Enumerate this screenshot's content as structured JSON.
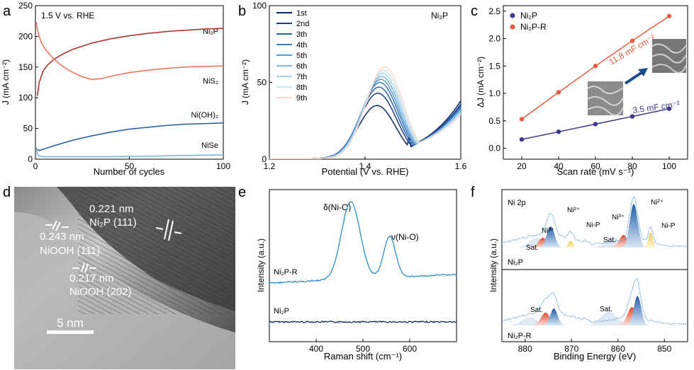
{
  "panels": {
    "a": {
      "letter": "a"
    },
    "b": {
      "letter": "b"
    },
    "c": {
      "letter": "c"
    },
    "d": {
      "letter": "d"
    },
    "e": {
      "letter": "e"
    },
    "f": {
      "letter": "f"
    }
  },
  "chart_data": [
    {
      "id": "a",
      "type": "line",
      "annotation": "1.5 V vs. RHE",
      "xlabel": "Number of cycles",
      "ylabel": "J (mA cm⁻²)",
      "xlim": [
        0,
        100
      ],
      "ylim": [
        0,
        250
      ],
      "xticks": [
        0,
        50,
        100
      ],
      "yticks": [
        0,
        50,
        100,
        150,
        200,
        250
      ],
      "series": [
        {
          "name": "Ni₂P",
          "color": "#b3261e",
          "x": [
            1,
            2,
            4,
            6,
            10,
            15,
            20,
            30,
            40,
            50,
            60,
            70,
            80,
            90,
            100
          ],
          "y": [
            103,
            125,
            143,
            152,
            163,
            172,
            179,
            189,
            196,
            201,
            205,
            208,
            210,
            212,
            213
          ]
        },
        {
          "name": "NiS₂",
          "color": "#f26c4f",
          "x": [
            0.5,
            1,
            2,
            3,
            5,
            8,
            12,
            16,
            20,
            25,
            30,
            35,
            40,
            50,
            60,
            70,
            80,
            90,
            100
          ],
          "y": [
            223,
            212,
            200,
            191,
            180,
            169,
            157,
            148,
            141,
            134,
            130,
            131,
            135,
            141,
            145,
            148,
            150,
            151,
            152
          ]
        },
        {
          "name": "Ni(OH)₂",
          "color": "#1f5aa6",
          "x": [
            1,
            2,
            5,
            10,
            20,
            30,
            40,
            50,
            60,
            70,
            80,
            90,
            100
          ],
          "y": [
            16,
            14,
            17,
            22,
            31,
            38,
            44,
            49,
            52,
            55,
            57,
            58,
            59
          ]
        },
        {
          "name": "NiSe",
          "color": "#6bb3e3",
          "x": [
            0.5,
            1,
            2,
            4,
            10,
            20,
            40,
            60,
            80,
            100
          ],
          "y": [
            19,
            9,
            5,
            4,
            4,
            4,
            4,
            5,
            6,
            7
          ]
        }
      ]
    },
    {
      "id": "b",
      "type": "line",
      "annotation": "Ni₂P",
      "xlabel": "Potential (V vs. RHE)",
      "ylabel": "J (mA cm⁻²)",
      "xlim": [
        1.2,
        1.6
      ],
      "ylim": [
        0,
        100
      ],
      "xticks": [
        1.2,
        1.4,
        1.6
      ],
      "yticks": [
        0,
        50,
        100
      ],
      "series": [
        {
          "name": "1st",
          "color": "#0b2a63",
          "peak": 35,
          "end": 38
        },
        {
          "name": "2nd",
          "color": "#1a3f86",
          "peak": 43,
          "end": 36
        },
        {
          "name": "3th",
          "color": "#2d62a8",
          "peak": 47,
          "end": 35
        },
        {
          "name": "4th",
          "color": "#3d79bb",
          "peak": 50,
          "end": 34
        },
        {
          "name": "5th",
          "color": "#5b9bd0",
          "peak": 52,
          "end": 33
        },
        {
          "name": "6th",
          "color": "#7fb8e2",
          "peak": 54,
          "end": 32
        },
        {
          "name": "7th",
          "color": "#a9d3ef",
          "peak": 56,
          "end": 31
        },
        {
          "name": "8th",
          "color": "#cbe4f2",
          "peak": 58,
          "end": 30
        },
        {
          "name": "9th",
          "color": "#f7d8c9",
          "peak": 60,
          "end": 29
        }
      ]
    },
    {
      "id": "c",
      "type": "scatter",
      "xlabel": "Scan rate (mV s⁻¹)",
      "ylabel": "ΔJ (mA cm⁻²)",
      "xlim": [
        10,
        110
      ],
      "ylim": [
        -0.2,
        2.6
      ],
      "xticks": [
        20,
        40,
        60,
        80,
        100
      ],
      "yticks": [
        0.0,
        0.5,
        1.0,
        1.5,
        2.0,
        2.5
      ],
      "series": [
        {
          "name": "Ni₂P",
          "color": "#3d3a8c",
          "x": [
            20,
            40,
            60,
            80,
            100
          ],
          "y": [
            0.16,
            0.3,
            0.44,
            0.58,
            0.72
          ],
          "fit_label": "3.5 mF cm⁻²"
        },
        {
          "name": "Ni₂P-R",
          "color": "#ef5a3c",
          "x": [
            20,
            40,
            60,
            80,
            100
          ],
          "y": [
            0.53,
            1.02,
            1.5,
            1.96,
            2.41
          ],
          "fit_label": "11.8 mF cm⁻²"
        }
      ]
    },
    {
      "id": "d",
      "type": "image",
      "labels": [
        {
          "text": "0.221 nm",
          "color": "#ffffff"
        },
        {
          "text": "Ni₂P (111)",
          "color": "#ffffff"
        },
        {
          "text": "0.243 nm",
          "color": "#ffffff"
        },
        {
          "text": "NiOOH (111)",
          "color": "#ffffff"
        },
        {
          "text": "0.217 nm",
          "color": "#ffffff"
        },
        {
          "text": "NiOOH (202)",
          "color": "#ffffff"
        }
      ],
      "scalebar": "5 nm"
    },
    {
      "id": "e",
      "type": "line",
      "xlabel": "Raman shift (cm⁻¹)",
      "ylabel": "Intensity (a.u.)",
      "xlim": [
        300,
        700
      ],
      "xticks": [
        400,
        500,
        600
      ],
      "peak_labels": [
        "δ(Ni-O)",
        "ν(Ni-O)"
      ],
      "series": [
        {
          "name": "Ni₂P-R",
          "color": "#2b8fd0",
          "peaks": [
            474,
            557
          ]
        },
        {
          "name": "Ni₂P",
          "color": "#0b2a63",
          "peaks": []
        }
      ]
    },
    {
      "id": "f",
      "type": "line",
      "title": "Ni 2p",
      "xlabel": "Binding Energy (eV)",
      "ylabel": "Intensity (a.u.)",
      "xlim": [
        885,
        845
      ],
      "xticks": [
        880,
        870,
        860,
        850
      ],
      "subplots": [
        {
          "name": "Ni₂P",
          "labels": [
            "Ni³⁺",
            "Ni²⁺",
            "Sat.",
            "Ni-P",
            "Ni³⁺",
            "Sat.",
            "Ni²⁺",
            "Ni-P"
          ]
        },
        {
          "name": "Ni₂P-R",
          "labels": [
            "Sat.",
            "Sat."
          ]
        }
      ]
    }
  ]
}
